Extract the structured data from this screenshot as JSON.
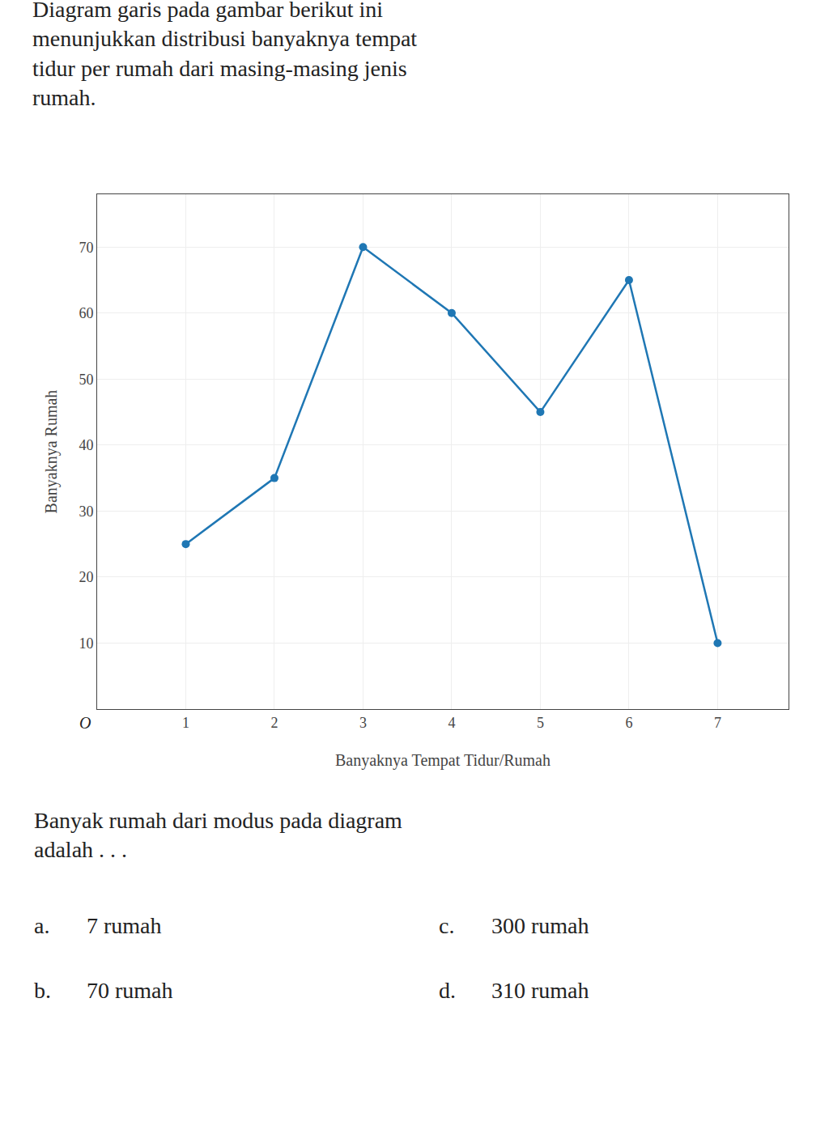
{
  "chart_data": {
    "type": "line",
    "title": "Diagram garis pada gambar berikut ini\nmenunjukkan distribusi banyaknya tempat\ntidur per rumah dari masing-masing jenis\nrumah.",
    "x": [
      1,
      2,
      3,
      4,
      5,
      6,
      7
    ],
    "values": [
      25,
      35,
      70,
      60,
      45,
      65,
      10
    ],
    "xlabel": "Banyaknya Tempat Tidur/Rumah",
    "ylabel": "Banyaknya Rumah",
    "xlim": [
      0,
      7.8
    ],
    "xticks": [
      1,
      2,
      3,
      4,
      5,
      6,
      7
    ],
    "ylim": [
      0,
      78
    ],
    "yticks": [
      10,
      20,
      30,
      40,
      50,
      60,
      70
    ],
    "grid": true,
    "marker": "circle",
    "annotations": [
      "Banyak rumah dari modus pada diagram\nadalah . . .",
      "a.",
      "7 rumah",
      "c.",
      "300 rumah",
      "b.",
      "70 rumah",
      "d.",
      "310 rumah",
      "O"
    ]
  }
}
